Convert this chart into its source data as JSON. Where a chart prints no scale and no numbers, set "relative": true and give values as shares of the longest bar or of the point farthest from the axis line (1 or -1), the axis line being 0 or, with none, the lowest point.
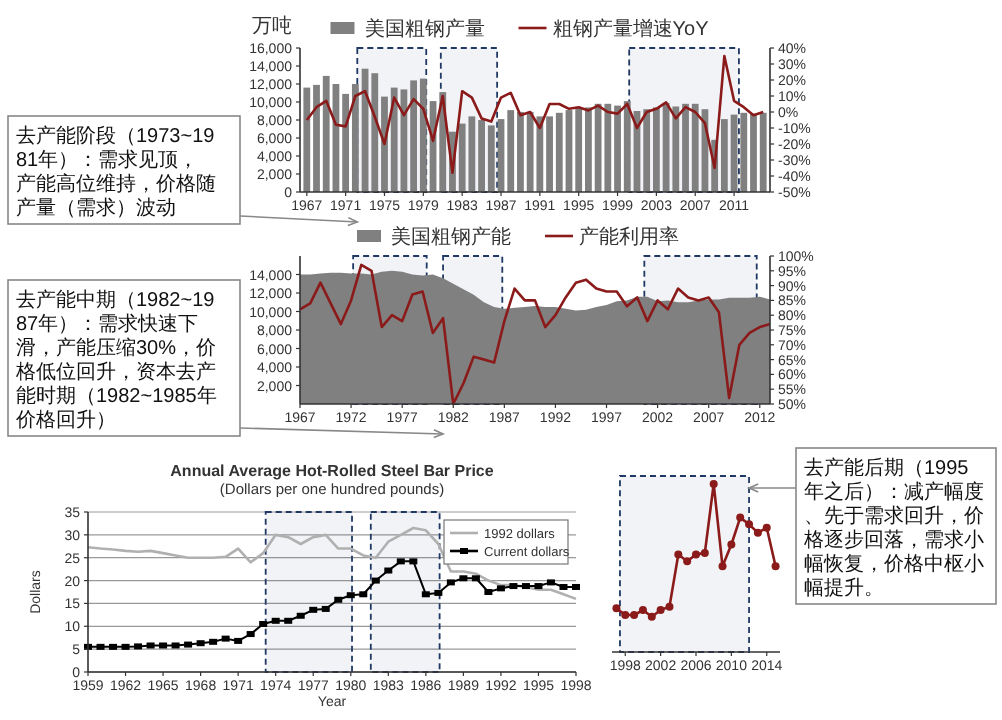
{
  "chart_data": [
    {
      "type": "bar",
      "ylabel": "万吨",
      "x": [
        1967,
        1968,
        1969,
        1970,
        1971,
        1972,
        1973,
        1974,
        1975,
        1976,
        1977,
        1978,
        1979,
        1980,
        1981,
        1982,
        1983,
        1984,
        1985,
        1986,
        1987,
        1988,
        1989,
        1990,
        1991,
        1992,
        1993,
        1994,
        1995,
        1996,
        1997,
        1998,
        1999,
        2000,
        2001,
        2002,
        2003,
        2004,
        2005,
        2006,
        2007,
        2008,
        2009,
        2010,
        2011,
        2012,
        2013,
        2014
      ],
      "xlim": [
        1966.3,
        2014.7
      ],
      "xticks": [
        1967,
        1971,
        1975,
        1979,
        1983,
        1987,
        1991,
        1995,
        1999,
        2003,
        2007,
        2011
      ],
      "ylim": [
        0,
        16000
      ],
      "yticks": [
        0,
        {
          "value": 2000,
          "label": "2,000"
        },
        {
          "value": 4000,
          "label": "4,000"
        },
        {
          "value": 6000,
          "label": "6,000"
        },
        {
          "value": 8000,
          "label": "8,000"
        },
        {
          "value": 10000,
          "label": "10,000"
        },
        {
          "value": 12000,
          "label": "12,000"
        },
        {
          "value": 14000,
          "label": "14,000"
        },
        {
          "value": 16000,
          "label": "16,000"
        }
      ],
      "y2lim": [
        -50,
        40
      ],
      "y2ticks": [
        {
          "value": -50,
          "label": "-50%"
        },
        {
          "value": -40,
          "label": "-40%"
        },
        {
          "value": -30,
          "label": "-30%"
        },
        {
          "value": -20,
          "label": "-20%"
        },
        {
          "value": -10,
          "label": "-10%"
        },
        {
          "value": 0,
          "label": "0%"
        },
        {
          "value": 10,
          "label": "10%"
        },
        {
          "value": 20,
          "label": "20%"
        },
        {
          "value": 30,
          "label": "30%"
        },
        {
          "value": 40,
          "label": "40%"
        }
      ],
      "series": [
        {
          "name": "美国粗钢产量",
          "color": "#808080",
          "values": [
            11600,
            11900,
            12900,
            12000,
            10900,
            12000,
            13700,
            13200,
            10600,
            11600,
            11400,
            12400,
            12600,
            10100,
            11100,
            6700,
            7600,
            8400,
            8000,
            7400,
            8100,
            9100,
            8900,
            8900,
            8400,
            8400,
            8800,
            9100,
            9400,
            9400,
            9800,
            9800,
            9600,
            10100,
            9000,
            9200,
            9400,
            9900,
            9500,
            9800,
            9800,
            9200,
            5800,
            8100,
            8600,
            8800,
            8700,
            8800
          ]
        },
        {
          "name": "粗钢产量增速YoY",
          "type": "line",
          "axis": "y2",
          "color": "#8b1a1a",
          "values": [
            -5,
            3,
            7,
            -8,
            -9,
            10,
            13,
            -3,
            -20,
            9,
            -2,
            8,
            2,
            -18,
            10,
            -38,
            13,
            9,
            -4,
            -6,
            9,
            12,
            -2,
            0,
            -10,
            5,
            5,
            2,
            3,
            1,
            4,
            0,
            -1,
            5,
            -10,
            0,
            2,
            6,
            -4,
            3,
            0,
            -7,
            -35,
            35,
            7,
            3,
            -2,
            0
          ]
        }
      ],
      "bands": [
        {
          "axis": "x",
          "from": 1972.2,
          "to": 1979.3,
          "color": "#1f3864"
        },
        {
          "axis": "x",
          "from": 1980.8,
          "to": 1986.6,
          "color": "#1f3864"
        },
        {
          "axis": "x",
          "from": 2000.2,
          "to": 2011.5,
          "color": "#1f3864"
        }
      ],
      "legend": "top",
      "annotations": [
        "去产能阶段（1973~1981年）：需求见顶，产能高位维持，价格随产量（需求）波动"
      ]
    },
    {
      "type": "area",
      "x": [
        1967,
        1968,
        1969,
        1970,
        1971,
        1972,
        1973,
        1974,
        1975,
        1976,
        1977,
        1978,
        1979,
        1980,
        1981,
        1982,
        1983,
        1984,
        1985,
        1986,
        1987,
        1988,
        1989,
        1990,
        1991,
        1992,
        1993,
        1994,
        1995,
        1996,
        1997,
        1998,
        1999,
        2000,
        2001,
        2002,
        2003,
        2004,
        2005,
        2006,
        2007,
        2008,
        2009,
        2010,
        2011,
        2012,
        2013
      ],
      "xlim": [
        1967,
        2013
      ],
      "xticks": [
        1967,
        1972,
        1977,
        1982,
        1987,
        1992,
        1997,
        2002,
        2007,
        2012
      ],
      "ylim": [
        0,
        16000
      ],
      "yticks": [
        {
          "value": 2000,
          "label": "2,000"
        },
        {
          "value": 4000,
          "label": "4,000"
        },
        {
          "value": 6000,
          "label": "6,000"
        },
        {
          "value": 8000,
          "label": "8,000"
        },
        {
          "value": 10000,
          "label": "10,000"
        },
        {
          "value": 12000,
          "label": "12,000"
        },
        {
          "value": 14000,
          "label": "14,000"
        }
      ],
      "y2lim": [
        50,
        100
      ],
      "y2ticks": [
        {
          "value": 50,
          "label": "50%"
        },
        {
          "value": 55,
          "label": "55%"
        },
        {
          "value": 60,
          "label": "60%"
        },
        {
          "value": 65,
          "label": "65%"
        },
        {
          "value": 70,
          "label": "70%"
        },
        {
          "value": 75,
          "label": "75%"
        },
        {
          "value": 80,
          "label": "80%"
        },
        {
          "value": 85,
          "label": "85%"
        },
        {
          "value": 90,
          "label": "90%"
        },
        {
          "value": 95,
          "label": "95%"
        },
        {
          "value": 100,
          "label": "100%"
        }
      ],
      "series": [
        {
          "name": "美国粗钢产能",
          "color": "#808080",
          "values": [
            14000,
            14000,
            14100,
            14200,
            14200,
            14100,
            14100,
            14000,
            14300,
            14400,
            14300,
            14000,
            13900,
            14000,
            13600,
            13000,
            12400,
            11800,
            11000,
            10500,
            10300,
            10400,
            10500,
            10600,
            10500,
            10500,
            10300,
            10100,
            10200,
            10500,
            10700,
            11100,
            11200,
            11600,
            11600,
            11100,
            11200,
            11000,
            11000,
            11200,
            11300,
            11300,
            11500,
            11500,
            11500,
            11600,
            11300
          ]
        },
        {
          "name": "产能利用率",
          "type": "line",
          "axis": "y2",
          "color": "#8b1a1a",
          "values": [
            82,
            84,
            91,
            84,
            77,
            85,
            97,
            95,
            76,
            80,
            78,
            87,
            88,
            74,
            79,
            50,
            57,
            66,
            65,
            64,
            78,
            89,
            85,
            85,
            76,
            80,
            86,
            91,
            92,
            89,
            88,
            88,
            83,
            86,
            78,
            85,
            82,
            89,
            86,
            85,
            86,
            81,
            52,
            70,
            74,
            76,
            77
          ]
        }
      ],
      "bands": [
        {
          "axis": "x",
          "from": 1972.2,
          "to": 1979.4,
          "color": "#1f3864"
        },
        {
          "axis": "x",
          "from": 1981,
          "to": 1986.8,
          "color": "#1f3864"
        },
        {
          "axis": "x",
          "from": 2000.7,
          "to": 2011.7,
          "color": "#1f3864"
        }
      ],
      "legend": "top",
      "annotations": [
        "去产能中期（1982~1987年）：需求快速下滑，产能压缩30%，价格低位回升，资本去产能时期（1982~1985年价格回升）"
      ]
    },
    {
      "type": "line",
      "title": "Annual Average Hot-Rolled Steel Bar Price",
      "subtitle": "(Dollars per one hundred pounds)",
      "xlabel": "Year",
      "ylabel": "Dollars",
      "x": [
        1959,
        1960,
        1961,
        1962,
        1963,
        1964,
        1965,
        1966,
        1967,
        1968,
        1969,
        1970,
        1971,
        1972,
        1973,
        1974,
        1975,
        1976,
        1977,
        1978,
        1979,
        1980,
        1981,
        1982,
        1983,
        1984,
        1985,
        1986,
        1987,
        1988,
        1989,
        1990,
        1991,
        1992,
        1993,
        1994,
        1995,
        1996,
        1997,
        1998
      ],
      "xlim": [
        1959,
        1998
      ],
      "xticks": [
        1959,
        1962,
        1965,
        1968,
        1971,
        1974,
        1977,
        1980,
        1983,
        1986,
        1989,
        1992,
        1995,
        1998
      ],
      "ylim": [
        0,
        35
      ],
      "yticks": [
        0,
        5,
        10,
        15,
        20,
        25,
        30,
        35
      ],
      "grid": "y",
      "legend": "top right",
      "series": [
        {
          "name": "1992 dollars",
          "color": "#b0b0b0",
          "marker": "none",
          "values": [
            27.3,
            27,
            26.8,
            26.5,
            26.3,
            26.5,
            26,
            25.5,
            25,
            25,
            25,
            25.2,
            27,
            24,
            26,
            30,
            29.5,
            28,
            29.5,
            30,
            27,
            27,
            25.5,
            25,
            28.5,
            30,
            31.5,
            31,
            28,
            22,
            22,
            21.5,
            20,
            19,
            19,
            18.6,
            18,
            18,
            17,
            16
          ]
        },
        {
          "name": "Current dollars",
          "color": "#000000",
          "marker": "square",
          "values": [
            5.5,
            5.5,
            5.5,
            5.5,
            5.6,
            5.8,
            5.8,
            5.8,
            6.0,
            6.3,
            6.6,
            7.3,
            6.8,
            8.3,
            10.5,
            11.2,
            11.2,
            12.3,
            13.6,
            13.8,
            15.8,
            16.8,
            17.0,
            20.0,
            22.2,
            24.2,
            24.2,
            17.0,
            17.3,
            19.6,
            20.5,
            20.5,
            17.5,
            18.3,
            18.8,
            18.8,
            18.8,
            19.6,
            18.6,
            18.6
          ]
        }
      ],
      "bands": [
        {
          "axis": "x",
          "from": 1973.2,
          "to": 1980.1,
          "color": "#1f3864"
        },
        {
          "axis": "x",
          "from": 1981.6,
          "to": 1987.1,
          "color": "#1f3864"
        }
      ]
    },
    {
      "type": "line",
      "relative": true,
      "marker": "circle",
      "x": [
        1997,
        1998,
        1999,
        2000,
        2001,
        2002,
        2003,
        2004,
        2005,
        2006,
        2007,
        2008,
        2009,
        2010,
        2011,
        2012,
        2013,
        2014,
        2015
      ],
      "xlim": [
        1996.5,
        2015.5
      ],
      "xticks": [
        1998,
        2002,
        2006,
        2010,
        2014
      ],
      "series": [
        {
          "color": "#8b1a1a",
          "values": [
            0.26,
            0.22,
            0.22,
            0.25,
            0.21,
            0.25,
            0.27,
            0.58,
            0.54,
            0.58,
            0.59,
            1,
            0.51,
            0.64,
            0.8,
            0.76,
            0.71,
            0.74,
            0.51
          ]
        }
      ],
      "bands": [
        {
          "axis": "x",
          "from": 1997.4,
          "to": 2012,
          "color": "#1f3864"
        }
      ],
      "annotations": [
        "去产能后期（1995年之后）：减产幅度、先于需求回升，价格逐步回落，需求小幅恢复，价格中枢小幅提升。"
      ]
    }
  ]
}
